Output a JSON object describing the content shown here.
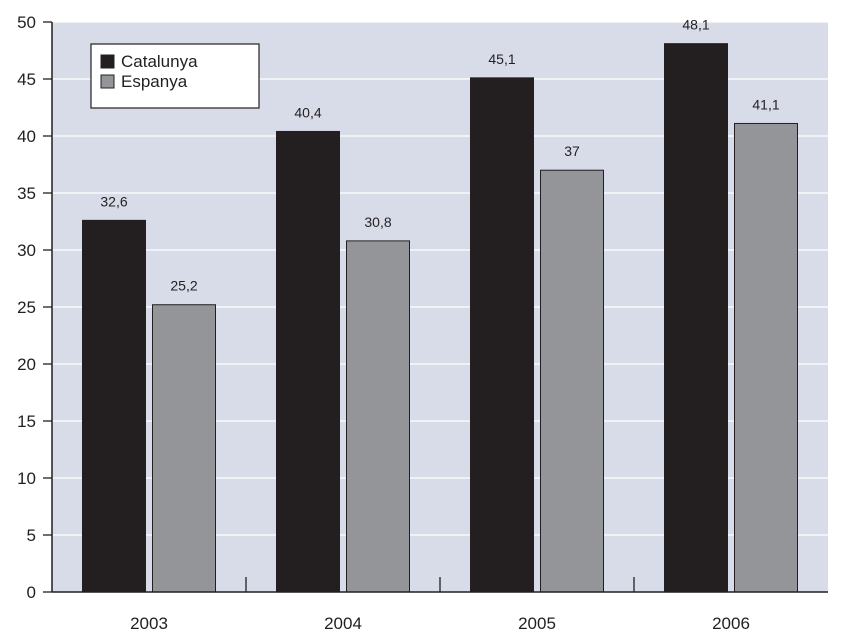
{
  "chart_data": {
    "type": "bar",
    "categories": [
      "2003",
      "2004",
      "2005",
      "2006"
    ],
    "series": [
      {
        "name": "Catalunya",
        "color": "#231f20",
        "values": [
          32.6,
          40.4,
          45.1,
          48.1
        ],
        "labels": [
          "32,6",
          "40,4",
          "45,1",
          "48,1"
        ]
      },
      {
        "name": "Espanya",
        "color": "#939598",
        "values": [
          25.2,
          30.8,
          37,
          41.1
        ],
        "labels": [
          "25,2",
          "30,8",
          "37",
          "41,1"
        ]
      }
    ],
    "ylim": [
      0,
      50
    ],
    "yticks": [
      "0",
      "5",
      "10",
      "15",
      "20",
      "25",
      "30",
      "35",
      "40",
      "45",
      "50"
    ],
    "grid": true,
    "legend": "top-left",
    "plot_background": "#d8dce9"
  }
}
